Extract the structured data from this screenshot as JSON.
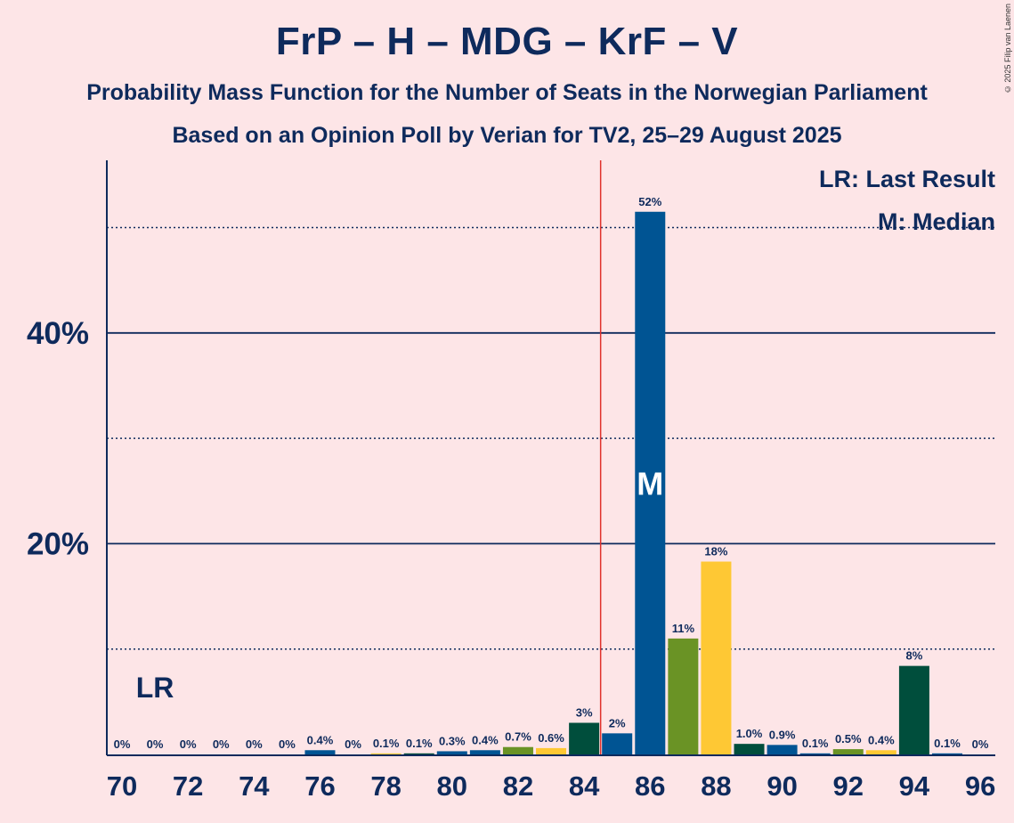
{
  "title": "FrP – H – MDG – KrF – V",
  "subtitle": "Probability Mass Function for the Number of Seats in the Norwegian Parliament",
  "subtitle2": "Based on an Opinion Poll by Verian for TV2, 25–29 August 2025",
  "copyright": "© 2025 Filip van Laenen",
  "legend": {
    "lr": "LR: Last Result",
    "m": "M: Median"
  },
  "colors": {
    "background": "#FDE5E7",
    "text": "#0E2A5C",
    "blue": "#005493",
    "green": "#6A9325",
    "yellow": "#FEC834",
    "darkgreen": "#004E3C",
    "majority_line": "#E0302B"
  },
  "chart_data": {
    "type": "bar",
    "x": [
      70,
      71,
      72,
      73,
      74,
      75,
      76,
      77,
      78,
      79,
      80,
      81,
      82,
      83,
      84,
      85,
      86,
      87,
      88,
      89,
      90,
      91,
      92,
      93,
      94,
      95,
      96
    ],
    "values": [
      0,
      0,
      0,
      0,
      0,
      0,
      0.4,
      0,
      0.1,
      0.1,
      0.3,
      0.4,
      0.7,
      0.6,
      3,
      2,
      51.5,
      11,
      18.3,
      1.0,
      0.9,
      0.1,
      0.5,
      0.4,
      8.4,
      0.1,
      0
    ],
    "labels": [
      "0%",
      "0%",
      "0%",
      "0%",
      "0%",
      "0%",
      "0.4%",
      "0%",
      "0.1%",
      "0.1%",
      "0.3%",
      "0.4%",
      "0.7%",
      "0.6%",
      "3%",
      "2%",
      "52%",
      "11%",
      "18%",
      "1.0%",
      "0.9%",
      "0.1%",
      "0.5%",
      "0.4%",
      "8%",
      "0.1%",
      "0%"
    ],
    "bar_colors": [
      "blue",
      "blue",
      "blue",
      "blue",
      "blue",
      "blue",
      "blue",
      "green",
      "yellow",
      "darkgreen",
      "blue",
      "blue",
      "green",
      "yellow",
      "darkgreen",
      "blue",
      "blue",
      "green",
      "yellow",
      "darkgreen",
      "blue",
      "blue",
      "green",
      "yellow",
      "darkgreen",
      "blue",
      "blue"
    ],
    "xticks": [
      "70",
      "72",
      "74",
      "76",
      "78",
      "80",
      "82",
      "84",
      "86",
      "88",
      "90",
      "92",
      "94",
      "96"
    ],
    "yticks": [
      {
        "value": 20,
        "label": "20%"
      },
      {
        "value": 40,
        "label": "40%"
      }
    ],
    "dotted_gridlines": [
      10,
      30,
      50
    ],
    "ylim": [
      0,
      56
    ],
    "last_result_seat": 71,
    "last_result_label": "LR",
    "median_seat": 86,
    "median_label": "M",
    "majority_threshold": 85,
    "legend_placement": "top-right"
  }
}
